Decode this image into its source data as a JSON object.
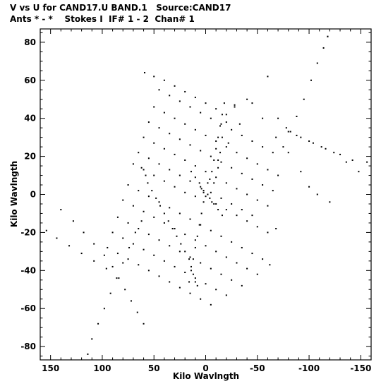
{
  "header": {
    "line1": "V vs U for CAND17.U BAND.1   Source:CAND17",
    "line2": "Ants * - *    Stokes I  IF# 1 - 2  Chan# 1"
  },
  "chart_data": {
    "type": "scatter",
    "title": "V vs U for CAND17.U BAND.1   Source:CAND17",
    "subtitle": "Ants * - *    Stokes I  IF# 1 - 2  Chan# 1",
    "xlabel": "Kilo Wavlngth",
    "ylabel": "Kilo Wavlngth",
    "xlim": [
      160,
      -160
    ],
    "ylim": [
      -87,
      87
    ],
    "x_ticks": [
      150,
      100,
      50,
      0,
      -50,
      -100,
      -150
    ],
    "y_ticks": [
      -80,
      -60,
      -40,
      -20,
      0,
      20,
      40,
      60,
      80
    ],
    "grid": false,
    "point_color": "#000000",
    "series": [
      {
        "values": [
          [
            -118,
            83
          ],
          [
            -114,
            77
          ],
          [
            -108,
            69
          ],
          [
            -102,
            60
          ],
          [
            -95,
            50
          ],
          [
            -88,
            41
          ],
          [
            -82,
            33
          ],
          [
            -75,
            25
          ],
          [
            -118,
            83
          ],
          [
            -60,
            62
          ],
          [
            -45,
            48
          ],
          [
            -33,
            37
          ],
          [
            -22,
            27
          ],
          [
            -12,
            18
          ],
          [
            -4,
            8
          ],
          [
            2,
            1
          ],
          [
            -40,
            50
          ],
          [
            -55,
            40
          ],
          [
            -68,
            30
          ],
          [
            -80,
            22
          ],
          [
            -92,
            12
          ],
          [
            -100,
            4
          ],
          [
            -108,
            0
          ],
          [
            -120,
            -4
          ],
          [
            -28,
            46
          ],
          [
            -20,
            38
          ],
          [
            -16,
            30
          ],
          [
            -14,
            22
          ],
          [
            -12,
            14
          ],
          [
            -8,
            6
          ],
          [
            -80,
            33
          ],
          [
            -92,
            30
          ],
          [
            -104,
            27
          ],
          [
            -116,
            24
          ],
          [
            -130,
            21
          ],
          [
            -142,
            18
          ],
          [
            -156,
            17
          ],
          [
            -70,
            40
          ],
          [
            -78,
            35
          ],
          [
            -88,
            31
          ],
          [
            -100,
            28
          ],
          [
            -112,
            25
          ],
          [
            -124,
            22
          ],
          [
            -136,
            17
          ],
          [
            -148,
            12
          ],
          [
            59,
            64
          ],
          [
            50,
            62
          ],
          [
            40,
            60
          ],
          [
            30,
            57
          ],
          [
            20,
            54
          ],
          [
            10,
            51
          ],
          [
            0,
            48
          ],
          [
            -10,
            45
          ],
          [
            -20,
            42
          ],
          [
            -28,
            47
          ],
          [
            45,
            55
          ],
          [
            35,
            52
          ],
          [
            25,
            49
          ],
          [
            15,
            46
          ],
          [
            5,
            43
          ],
          [
            -5,
            40
          ],
          [
            -15,
            37
          ],
          [
            -25,
            34
          ],
          [
            -35,
            31
          ],
          [
            -45,
            28
          ],
          [
            -55,
            25
          ],
          [
            -65,
            22
          ],
          [
            50,
            46
          ],
          [
            40,
            43
          ],
          [
            30,
            40
          ],
          [
            20,
            37
          ],
          [
            10,
            34
          ],
          [
            0,
            31
          ],
          [
            -10,
            28
          ],
          [
            -20,
            25
          ],
          [
            -30,
            22
          ],
          [
            -40,
            19
          ],
          [
            -50,
            16
          ],
          [
            -60,
            13
          ],
          [
            -70,
            10
          ],
          [
            55,
            38
          ],
          [
            45,
            35
          ],
          [
            35,
            32
          ],
          [
            25,
            29
          ],
          [
            15,
            26
          ],
          [
            5,
            23
          ],
          [
            -5,
            20
          ],
          [
            -15,
            17
          ],
          [
            -25,
            14
          ],
          [
            -35,
            11
          ],
          [
            -45,
            8
          ],
          [
            -55,
            5
          ],
          [
            -65,
            2
          ],
          [
            60,
            30
          ],
          [
            50,
            27
          ],
          [
            40,
            24
          ],
          [
            30,
            21
          ],
          [
            20,
            18
          ],
          [
            10,
            15
          ],
          [
            0,
            12
          ],
          [
            -10,
            9
          ],
          [
            -20,
            6
          ],
          [
            -30,
            3
          ],
          [
            -40,
            0
          ],
          [
            -50,
            -3
          ],
          [
            -60,
            -6
          ],
          [
            65,
            22
          ],
          [
            55,
            19
          ],
          [
            45,
            16
          ],
          [
            35,
            13
          ],
          [
            25,
            10
          ],
          [
            15,
            7
          ],
          [
            5,
            4
          ],
          [
            -5,
            1
          ],
          [
            -15,
            -2
          ],
          [
            -25,
            -5
          ],
          [
            -35,
            -8
          ],
          [
            -45,
            -11
          ],
          [
            70,
            16
          ],
          [
            60,
            13
          ],
          [
            50,
            10
          ],
          [
            40,
            7
          ],
          [
            30,
            4
          ],
          [
            20,
            1
          ],
          [
            10,
            -1
          ],
          [
            -10,
            -5
          ],
          [
            -20,
            -8
          ],
          [
            -30,
            -11
          ],
          [
            -40,
            -14
          ],
          [
            -50,
            -17
          ],
          [
            -60,
            -20
          ],
          [
            -68,
            -18
          ],
          [
            62,
            14
          ],
          [
            58,
            10
          ],
          [
            56,
            6
          ],
          [
            52,
            2
          ],
          [
            48,
            -2
          ],
          [
            44,
            -6
          ],
          [
            40,
            -10
          ],
          [
            36,
            -14
          ],
          [
            32,
            -18
          ],
          [
            28,
            -22
          ],
          [
            24,
            -26
          ],
          [
            20,
            -30
          ],
          [
            16,
            -34
          ],
          [
            14,
            -38
          ],
          [
            12,
            -42
          ],
          [
            10,
            -46
          ],
          [
            8,
            -48
          ],
          [
            75,
            5
          ],
          [
            65,
            2
          ],
          [
            55,
            -1
          ],
          [
            45,
            -4
          ],
          [
            35,
            -7
          ],
          [
            25,
            -10
          ],
          [
            15,
            -13
          ],
          [
            5,
            -16
          ],
          [
            -5,
            -19
          ],
          [
            -15,
            -22
          ],
          [
            -25,
            -25
          ],
          [
            -35,
            -28
          ],
          [
            -45,
            -31
          ],
          [
            -55,
            -34
          ],
          [
            -62,
            -37
          ],
          [
            80,
            -3
          ],
          [
            70,
            -6
          ],
          [
            60,
            -9
          ],
          [
            50,
            -12
          ],
          [
            40,
            -15
          ],
          [
            30,
            -18
          ],
          [
            20,
            -21
          ],
          [
            10,
            -24
          ],
          [
            0,
            -27
          ],
          [
            -10,
            -30
          ],
          [
            -20,
            -33
          ],
          [
            -30,
            -36
          ],
          [
            -40,
            -39
          ],
          [
            -50,
            -42
          ],
          [
            85,
            -12
          ],
          [
            75,
            -15
          ],
          [
            65,
            -18
          ],
          [
            55,
            -21
          ],
          [
            45,
            -24
          ],
          [
            35,
            -27
          ],
          [
            25,
            -30
          ],
          [
            15,
            -33
          ],
          [
            5,
            -36
          ],
          [
            -5,
            -39
          ],
          [
            -15,
            -42
          ],
          [
            -25,
            -45
          ],
          [
            -35,
            -48
          ],
          [
            90,
            -20
          ],
          [
            80,
            -23
          ],
          [
            70,
            -26
          ],
          [
            60,
            -29
          ],
          [
            50,
            -32
          ],
          [
            40,
            -35
          ],
          [
            30,
            -38
          ],
          [
            20,
            -41
          ],
          [
            10,
            -44
          ],
          [
            0,
            -47
          ],
          [
            -10,
            -50
          ],
          [
            -20,
            -53
          ],
          [
            95,
            -28
          ],
          [
            85,
            -31
          ],
          [
            75,
            -34
          ],
          [
            65,
            -37
          ],
          [
            55,
            -40
          ],
          [
            45,
            -43
          ],
          [
            35,
            -46
          ],
          [
            25,
            -49
          ],
          [
            15,
            -52
          ],
          [
            5,
            -55
          ],
          [
            -5,
            -58
          ],
          [
            140,
            -8
          ],
          [
            128,
            -14
          ],
          [
            118,
            -20
          ],
          [
            108,
            -26
          ],
          [
            98,
            -32
          ],
          [
            90,
            -38
          ],
          [
            84,
            -44
          ],
          [
            78,
            -50
          ],
          [
            72,
            -56
          ],
          [
            66,
            -62
          ],
          [
            60,
            -68
          ],
          [
            154,
            -19
          ],
          [
            144,
            -23
          ],
          [
            132,
            -27
          ],
          [
            120,
            -31
          ],
          [
            108,
            -35
          ],
          [
            96,
            -39
          ],
          [
            114,
            -84
          ],
          [
            110,
            -76
          ],
          [
            104,
            -68
          ],
          [
            98,
            -60
          ],
          [
            92,
            -52
          ],
          [
            86,
            -44
          ],
          [
            80,
            -36
          ],
          [
            74,
            -28
          ],
          [
            68,
            -20
          ],
          [
            62,
            -14
          ],
          [
            2,
            2
          ],
          [
            6,
            6
          ],
          [
            10,
            9
          ],
          [
            14,
            12
          ],
          [
            -4,
            -2
          ],
          [
            -8,
            -5
          ],
          [
            -12,
            -8
          ],
          [
            -16,
            -11
          ],
          [
            -2,
            0
          ],
          [
            0,
            -1
          ],
          [
            4,
            3
          ],
          [
            -6,
            -4
          ],
          [
            2,
            -4
          ],
          [
            4,
            -10
          ],
          [
            6,
            -16
          ],
          [
            8,
            -22
          ],
          [
            10,
            -28
          ],
          [
            12,
            -34
          ],
          [
            14,
            -40
          ],
          [
            16,
            -46
          ],
          [
            -2,
            6
          ],
          [
            -6,
            12
          ],
          [
            -8,
            18
          ],
          [
            -10,
            24
          ],
          [
            -12,
            30
          ],
          [
            -14,
            36
          ],
          [
            -16,
            42
          ],
          [
            -18,
            48
          ]
        ]
      }
    ]
  }
}
